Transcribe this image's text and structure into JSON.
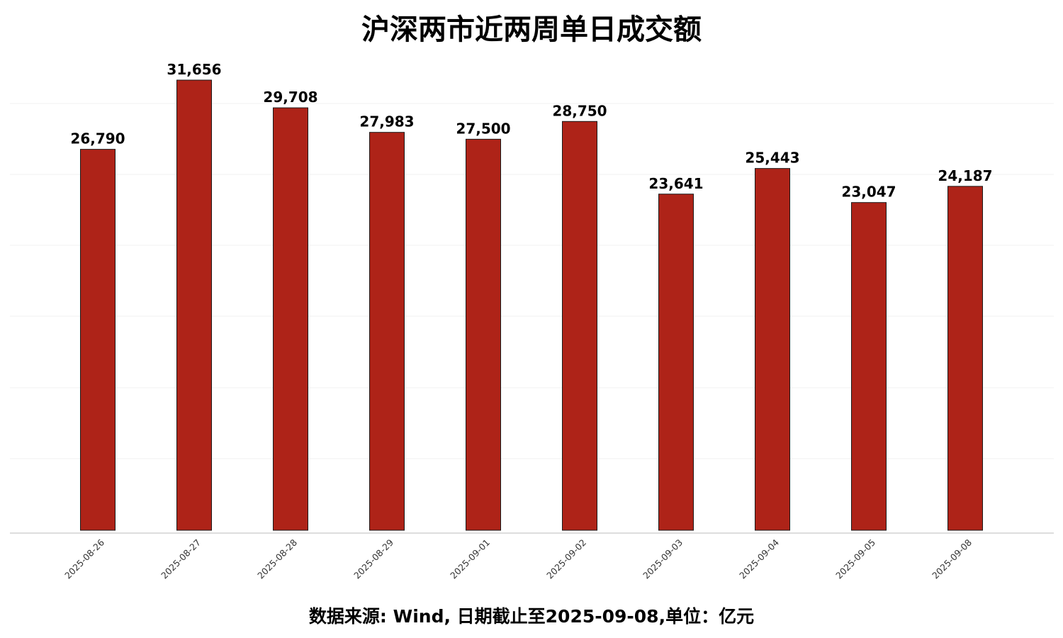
{
  "chart_data": {
    "type": "bar",
    "title": "沪深两市近两周单日成交额",
    "footer": "数据来源: Wind, 日期截止至2025-09-08,单位：亿元",
    "categories": [
      "2025-08-26",
      "2025-08-27",
      "2025-08-28",
      "2025-08-29",
      "2025-09-01",
      "2025-09-02",
      "2025-09-03",
      "2025-09-04",
      "2025-09-05",
      "2025-09-08"
    ],
    "values": [
      26790,
      31656,
      29708,
      27983,
      27500,
      28750,
      23641,
      25443,
      23047,
      24187
    ],
    "value_labels": [
      "26,790",
      "31,656",
      "29,708",
      "27,983",
      "27,500",
      "28,750",
      "23,641",
      "25,443",
      "23,047",
      "24,187"
    ],
    "ylim": [
      0,
      31656
    ],
    "grid": true,
    "legend": false,
    "colors": {
      "bar": "#ae2318",
      "bar_edge": "#1a1a1a",
      "grid": "#f0f0f0",
      "axis": "#bbbbbb"
    }
  }
}
